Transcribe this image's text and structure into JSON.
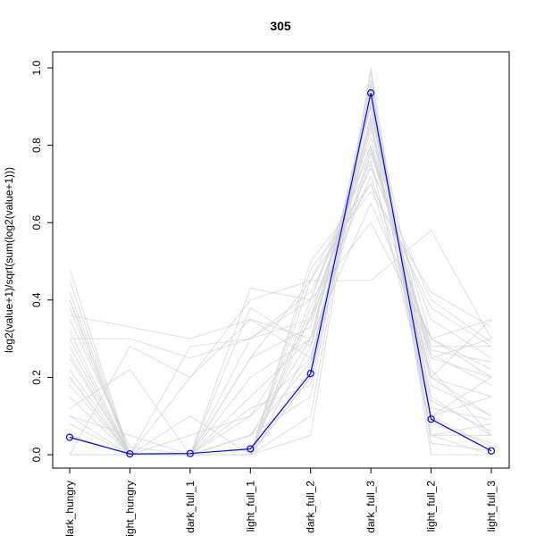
{
  "chart_data": {
    "type": "line",
    "title": "305",
    "xlabel": "",
    "ylabel": "log2(value+1)/sqrt(sum(log2(value+1)))",
    "categories": [
      "dark_hungry",
      "light_hungry",
      "dark_full_1",
      "light_full_1",
      "dark_full_2",
      "dark_full_3",
      "light_full_2",
      "light_full_3"
    ],
    "ylim": [
      0,
      1
    ],
    "yticks": [
      0.0,
      0.2,
      0.4,
      0.6,
      0.8,
      1.0
    ],
    "ytick_labels": [
      "0.0",
      "0.2",
      "0.4",
      "0.6",
      "0.8",
      "1.0"
    ],
    "grid": false,
    "highlight_series": {
      "values": [
        0.045,
        0.002,
        0.003,
        0.015,
        0.21,
        0.935,
        0.092,
        0.01
      ],
      "color": "#0000FF",
      "marker": "open-circle"
    },
    "background_series_color": "#D3D3D3",
    "background_series": [
      [
        0.48,
        0.0,
        0.0,
        0.0,
        0.45,
        0.76,
        0.1,
        0.2
      ],
      [
        0.4,
        0.0,
        0.0,
        0.0,
        0.5,
        0.7,
        0.2,
        0.35
      ],
      [
        0.35,
        0.02,
        0.0,
        0.05,
        0.3,
        0.9,
        0.15,
        0.05
      ],
      [
        0.3,
        0.0,
        0.0,
        0.1,
        0.25,
        0.88,
        0.2,
        0.1
      ],
      [
        0.25,
        0.0,
        0.0,
        0.0,
        0.4,
        0.8,
        0.25,
        0.2
      ],
      [
        0.2,
        0.0,
        0.05,
        0.1,
        0.35,
        0.85,
        0.1,
        0.15
      ],
      [
        0.15,
        0.0,
        0.0,
        0.2,
        0.3,
        0.9,
        0.05,
        0.05
      ],
      [
        0.1,
        0.0,
        0.0,
        0.0,
        0.2,
        0.95,
        0.1,
        0.02
      ],
      [
        0.05,
        0.0,
        0.0,
        0.0,
        0.1,
        0.99,
        0.05,
        0.0
      ],
      [
        0.0,
        0.0,
        0.0,
        0.0,
        0.05,
        1.0,
        0.0,
        0.0
      ],
      [
        0.36,
        0.33,
        0.3,
        0.35,
        0.3,
        0.65,
        0.3,
        0.35
      ],
      [
        0.0,
        0.0,
        0.2,
        0.4,
        0.45,
        0.45,
        0.58,
        0.3
      ],
      [
        0.3,
        0.3,
        0.25,
        0.3,
        0.35,
        0.72,
        0.25,
        0.3
      ],
      [
        0.0,
        0.0,
        0.0,
        0.43,
        0.4,
        0.6,
        0.3,
        0.2
      ],
      [
        0.42,
        0.0,
        0.0,
        0.0,
        0.38,
        0.75,
        0.35,
        0.25
      ],
      [
        0.0,
        0.28,
        0.2,
        0.35,
        0.25,
        0.78,
        0.28,
        0.28
      ],
      [
        0.2,
        0.0,
        0.0,
        0.3,
        0.4,
        0.82,
        0.2,
        0.15
      ],
      [
        0.1,
        0.05,
        0.0,
        0.25,
        0.33,
        0.86,
        0.18,
        0.1
      ],
      [
        0.45,
        0.0,
        0.0,
        0.0,
        0.2,
        0.87,
        0.05,
        0.08
      ],
      [
        0.0,
        0.0,
        0.0,
        0.0,
        0.28,
        0.93,
        0.22,
        0.05
      ],
      [
        0.32,
        0.0,
        0.0,
        0.15,
        0.3,
        0.84,
        0.3,
        0.22
      ],
      [
        0.28,
        0.0,
        0.1,
        0.0,
        0.36,
        0.8,
        0.26,
        0.18
      ],
      [
        0.18,
        0.0,
        0.0,
        0.05,
        0.24,
        0.91,
        0.14,
        0.06
      ],
      [
        0.38,
        0.0,
        0.0,
        0.25,
        0.45,
        0.7,
        0.38,
        0.28
      ],
      [
        0.12,
        0.22,
        0.0,
        0.05,
        0.15,
        0.96,
        0.08,
        0.03
      ],
      [
        0.0,
        0.0,
        0.28,
        0.3,
        0.42,
        0.74,
        0.4,
        0.29
      ],
      [
        0.26,
        0.0,
        0.0,
        0.0,
        0.48,
        0.68,
        0.42,
        0.33
      ],
      [
        0.22,
        0.0,
        0.0,
        0.12,
        0.18,
        0.92,
        0.12,
        0.09
      ],
      [
        0.08,
        0.0,
        0.0,
        0.0,
        0.22,
        0.97,
        0.03,
        0.01
      ],
      [
        0.4,
        0.0,
        0.0,
        0.38,
        0.28,
        0.79,
        0.27,
        0.24
      ]
    ]
  }
}
